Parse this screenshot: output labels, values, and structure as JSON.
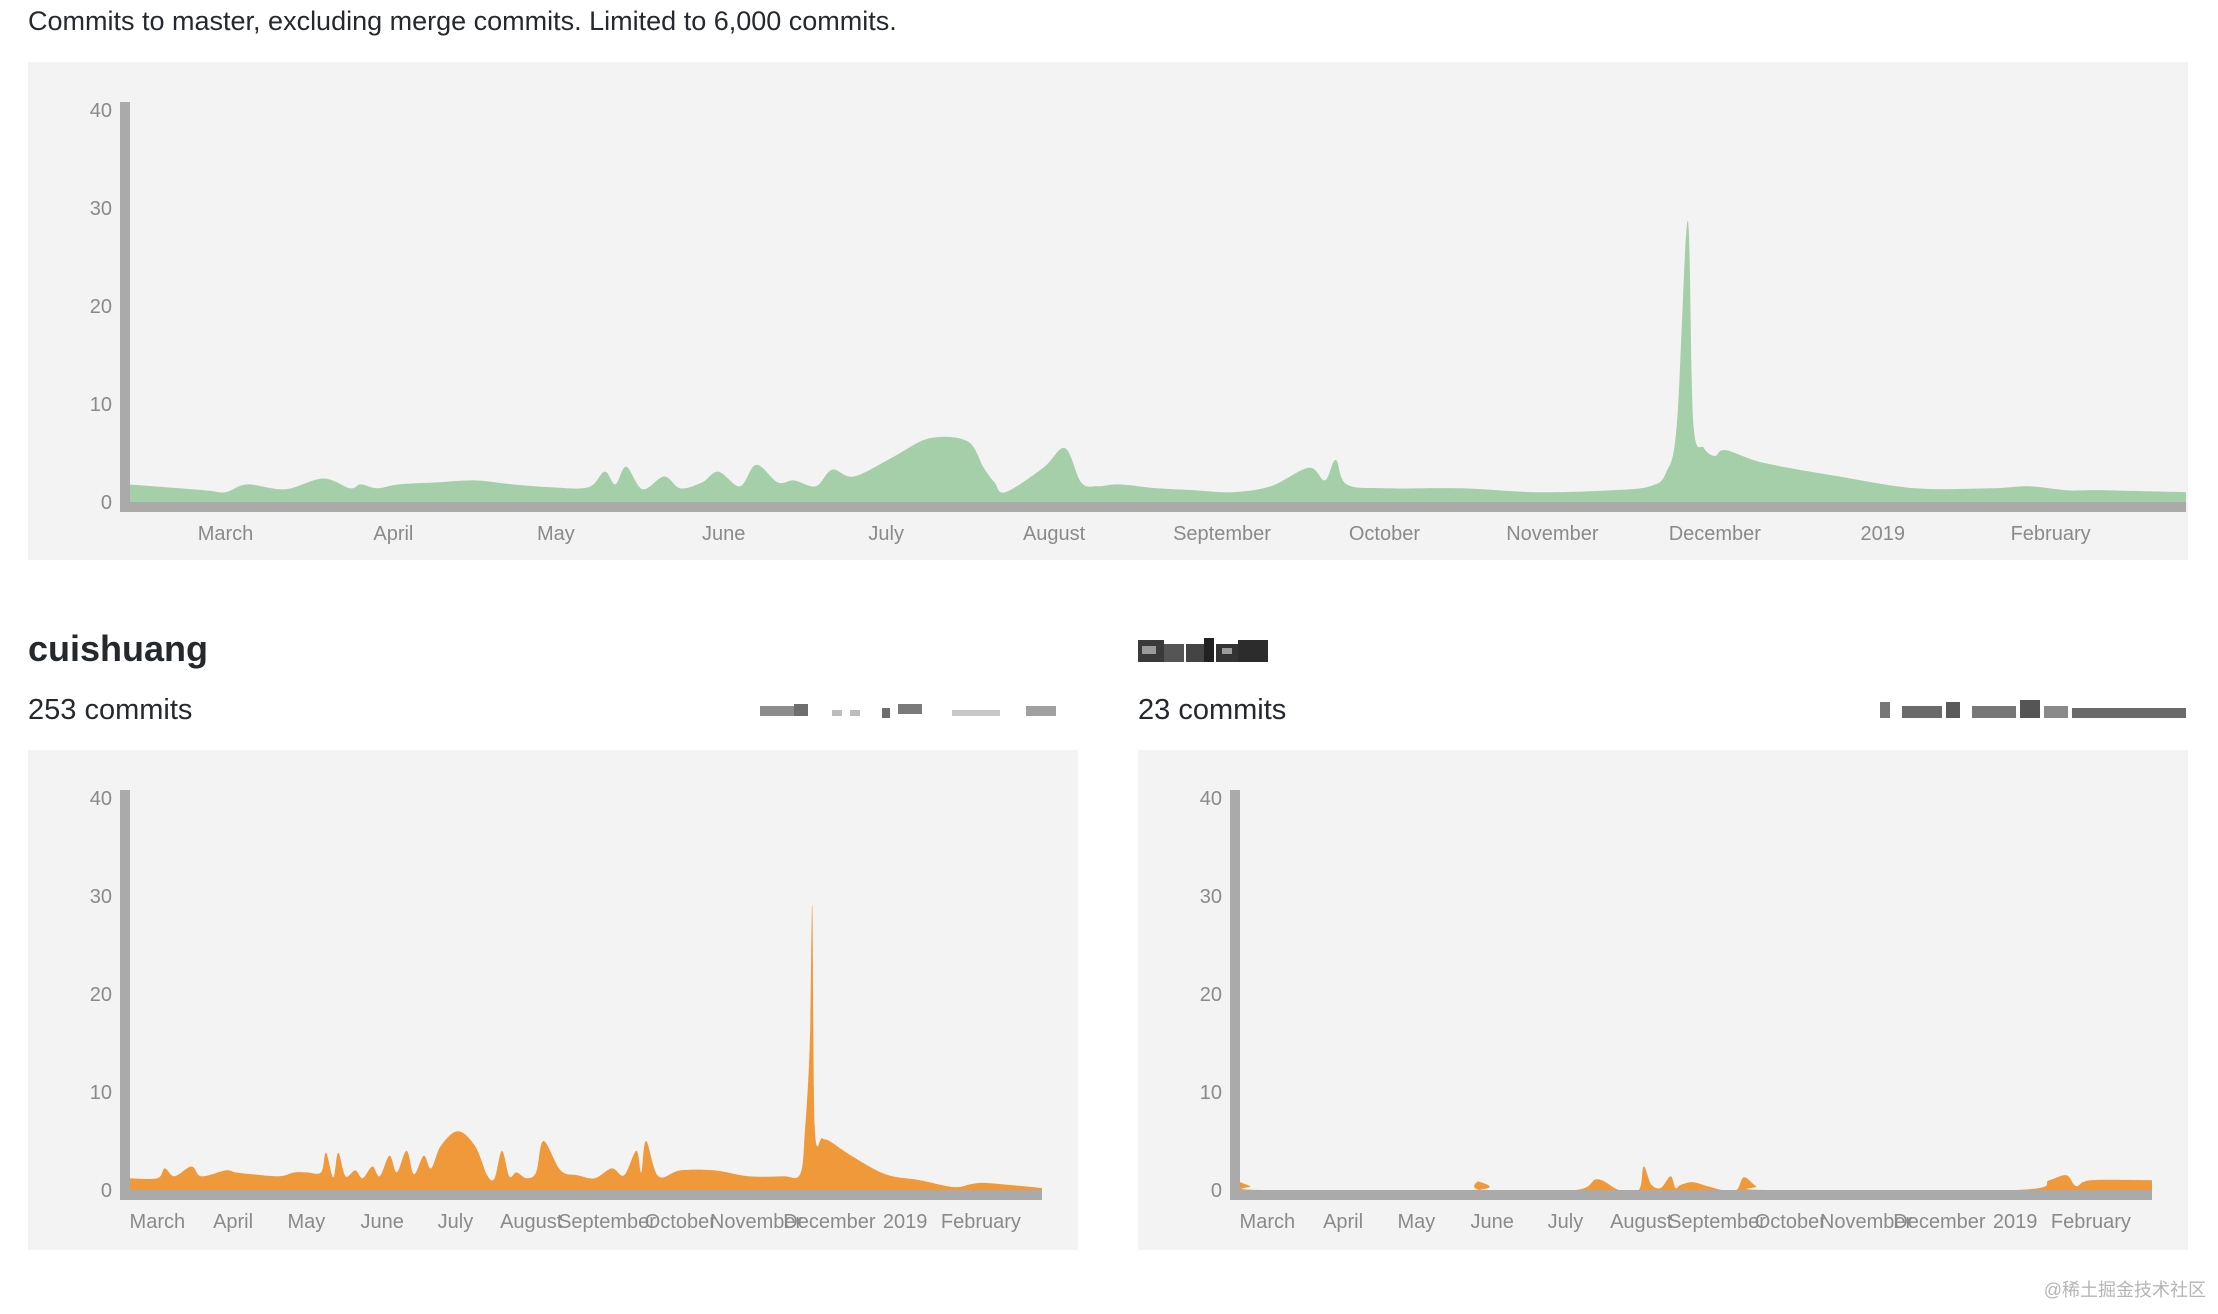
{
  "page": {
    "description": "Commits to master, excluding merge commits. Limited to 6,000 commits.",
    "watermark": "@稀土掘金技术社区"
  },
  "colors": {
    "panel_bg": "#f3f3f3",
    "axis": "#aaaaaa",
    "tick_text": "#8a8a8a",
    "overall_area": "#a5cfa9",
    "contributor_area": "#f0993a"
  },
  "contributors": [
    {
      "name": "cuishuang",
      "commits_label": "253 commits"
    },
    {
      "name": "",
      "commits_label": "23 commits"
    }
  ],
  "chart_data": [
    {
      "type": "area",
      "id": "overall",
      "ylim": [
        0,
        40
      ],
      "yticks": [
        0,
        10,
        20,
        30,
        40
      ],
      "x_domain": [
        "2018-02-11",
        "2019-02-26"
      ],
      "xticks": [
        {
          "date": "2018-03-01",
          "label": "March"
        },
        {
          "date": "2018-04-01",
          "label": "April"
        },
        {
          "date": "2018-05-01",
          "label": "May"
        },
        {
          "date": "2018-06-01",
          "label": "June"
        },
        {
          "date": "2018-07-01",
          "label": "July"
        },
        {
          "date": "2018-08-01",
          "label": "August"
        },
        {
          "date": "2018-09-01",
          "label": "September"
        },
        {
          "date": "2018-10-01",
          "label": "October"
        },
        {
          "date": "2018-11-01",
          "label": "November"
        },
        {
          "date": "2018-12-01",
          "label": "December"
        },
        {
          "date": "2019-01-01",
          "label": "2019"
        },
        {
          "date": "2019-02-01",
          "label": "February"
        }
      ],
      "series": [
        {
          "x": [
            "2018-02-11",
            "2018-02-25",
            "2018-03-01",
            "2018-03-05",
            "2018-03-12",
            "2018-03-19",
            "2018-03-24",
            "2018-03-26",
            "2018-03-29",
            "2018-04-02",
            "2018-04-09",
            "2018-04-16",
            "2018-04-23",
            "2018-04-30",
            "2018-05-07",
            "2018-05-10",
            "2018-05-12",
            "2018-05-14",
            "2018-05-17",
            "2018-05-21",
            "2018-05-24",
            "2018-05-28",
            "2018-05-31",
            "2018-06-04",
            "2018-06-07",
            "2018-06-11",
            "2018-06-14",
            "2018-06-18",
            "2018-06-21",
            "2018-06-25",
            "2018-07-02",
            "2018-07-09",
            "2018-07-16",
            "2018-07-19",
            "2018-07-21",
            "2018-07-23",
            "2018-07-30",
            "2018-08-03",
            "2018-08-06",
            "2018-08-09",
            "2018-08-13",
            "2018-08-20",
            "2018-08-27",
            "2018-09-03",
            "2018-09-10",
            "2018-09-17",
            "2018-09-20",
            "2018-09-22",
            "2018-09-24",
            "2018-10-01",
            "2018-10-15",
            "2018-10-29",
            "2018-11-12",
            "2018-11-19",
            "2018-11-22",
            "2018-11-24",
            "2018-11-26",
            "2018-11-27",
            "2018-11-29",
            "2018-12-01",
            "2018-12-03",
            "2018-12-10",
            "2018-12-24",
            "2019-01-07",
            "2019-01-21",
            "2019-01-28",
            "2019-02-04",
            "2019-02-11",
            "2019-02-26"
          ],
          "values": [
            1.8,
            1.2,
            1.0,
            1.8,
            1.3,
            2.4,
            1.4,
            1.8,
            1.4,
            1.8,
            2.0,
            2.2,
            1.8,
            1.5,
            1.5,
            3.1,
            1.8,
            3.6,
            1.3,
            2.6,
            1.4,
            2.0,
            3.1,
            1.6,
            3.8,
            2.0,
            2.2,
            1.6,
            3.3,
            2.6,
            4.5,
            6.5,
            6.2,
            3.5,
            2.0,
            1.0,
            3.5,
            5.5,
            2.0,
            1.6,
            1.8,
            1.4,
            1.2,
            1.0,
            1.6,
            3.5,
            2.2,
            4.3,
            1.8,
            1.4,
            1.4,
            1.0,
            1.2,
            1.6,
            3.0,
            8.0,
            28.7,
            8.2,
            5.5,
            4.7,
            5.3,
            4.0,
            2.6,
            1.4,
            1.4,
            1.6,
            1.2,
            1.2,
            1.0
          ]
        }
      ]
    },
    {
      "type": "area",
      "id": "contributor-1",
      "ylim": [
        0,
        40
      ],
      "yticks": [
        0,
        10,
        20,
        30,
        40
      ],
      "x_domain": [
        "2018-02-17",
        "2019-02-26"
      ],
      "xticks": [
        {
          "date": "2018-03-01",
          "label": "March"
        },
        {
          "date": "2018-04-01",
          "label": "April"
        },
        {
          "date": "2018-05-01",
          "label": "May"
        },
        {
          "date": "2018-06-01",
          "label": "June"
        },
        {
          "date": "2018-07-01",
          "label": "July"
        },
        {
          "date": "2018-08-01",
          "label": "August"
        },
        {
          "date": "2018-09-01",
          "label": "September"
        },
        {
          "date": "2018-10-01",
          "label": "October"
        },
        {
          "date": "2018-11-01",
          "label": "November"
        },
        {
          "date": "2018-12-01",
          "label": "December"
        },
        {
          "date": "2019-01-01",
          "label": "2019"
        },
        {
          "date": "2019-02-01",
          "label": "February"
        }
      ],
      "series": [
        {
          "x": [
            "2018-02-17",
            "2018-03-01",
            "2018-03-04",
            "2018-03-08",
            "2018-03-15",
            "2018-03-19",
            "2018-03-29",
            "2018-04-02",
            "2018-04-09",
            "2018-04-20",
            "2018-04-26",
            "2018-05-01",
            "2018-05-07",
            "2018-05-09",
            "2018-05-12",
            "2018-05-14",
            "2018-05-17",
            "2018-05-21",
            "2018-05-24",
            "2018-05-28",
            "2018-05-31",
            "2018-06-04",
            "2018-06-07",
            "2018-06-11",
            "2018-06-14",
            "2018-06-18",
            "2018-06-21",
            "2018-06-25",
            "2018-07-02",
            "2018-07-09",
            "2018-07-14",
            "2018-07-17",
            "2018-07-20",
            "2018-07-23",
            "2018-07-26",
            "2018-07-30",
            "2018-08-03",
            "2018-08-06",
            "2018-08-13",
            "2018-08-20",
            "2018-08-27",
            "2018-09-03",
            "2018-09-08",
            "2018-09-13",
            "2018-09-15",
            "2018-09-17",
            "2018-09-22",
            "2018-10-01",
            "2018-10-15",
            "2018-10-29",
            "2018-11-12",
            "2018-11-19",
            "2018-11-21",
            "2018-11-23",
            "2018-11-24",
            "2018-11-25",
            "2018-11-28",
            "2018-12-01",
            "2018-12-10",
            "2018-12-24",
            "2019-01-07",
            "2019-01-21",
            "2019-01-28",
            "2019-02-04",
            "2019-02-26"
          ],
          "values": [
            1.2,
            1.2,
            2.2,
            1.4,
            2.4,
            1.4,
            2.0,
            1.8,
            1.6,
            1.4,
            1.8,
            1.8,
            1.8,
            3.8,
            1.3,
            3.8,
            1.4,
            2.0,
            1.2,
            2.4,
            1.4,
            3.5,
            1.8,
            4.0,
            1.6,
            3.5,
            2.2,
            4.5,
            6.0,
            4.5,
            1.5,
            1.2,
            4.0,
            1.4,
            1.8,
            1.2,
            1.8,
            5.0,
            2.0,
            1.5,
            1.2,
            2.2,
            1.5,
            4.0,
            1.8,
            5.0,
            1.4,
            2.0,
            2.0,
            1.4,
            1.4,
            1.6,
            6.0,
            15.0,
            29.0,
            6.5,
            5.3,
            5.0,
            3.5,
            1.6,
            1.0,
            0.3,
            0.6,
            0.7,
            0.2
          ]
        }
      ]
    },
    {
      "type": "area",
      "id": "contributor-2",
      "ylim": [
        0,
        40
      ],
      "yticks": [
        0,
        10,
        20,
        30,
        40
      ],
      "x_domain": [
        "2018-02-17",
        "2019-02-26"
      ],
      "xticks": [
        {
          "date": "2018-03-01",
          "label": "March"
        },
        {
          "date": "2018-04-01",
          "label": "April"
        },
        {
          "date": "2018-05-01",
          "label": "May"
        },
        {
          "date": "2018-06-01",
          "label": "June"
        },
        {
          "date": "2018-07-01",
          "label": "July"
        },
        {
          "date": "2018-08-01",
          "label": "August"
        },
        {
          "date": "2018-09-01",
          "label": "September"
        },
        {
          "date": "2018-10-01",
          "label": "October"
        },
        {
          "date": "2018-11-01",
          "label": "November"
        },
        {
          "date": "2018-12-01",
          "label": "December"
        },
        {
          "date": "2019-01-01",
          "label": "2019"
        },
        {
          "date": "2019-02-01",
          "label": "February"
        }
      ],
      "series": [
        {
          "x": [
            "2018-02-17",
            "2018-02-22",
            "2018-02-26",
            "2018-05-24",
            "2018-05-26",
            "2018-05-28",
            "2018-07-05",
            "2018-07-14",
            "2018-07-23",
            "2018-07-31",
            "2018-08-02",
            "2018-08-05",
            "2018-08-09",
            "2018-08-13",
            "2018-08-15",
            "2018-08-17",
            "2018-08-22",
            "2018-08-28",
            "2018-09-03",
            "2018-09-09",
            "2018-09-12",
            "2018-09-17",
            "2018-09-22",
            "2019-01-01",
            "2019-01-15",
            "2019-01-22",
            "2019-01-26",
            "2019-02-01",
            "2019-02-26"
          ],
          "values": [
            0.9,
            0.4,
            0,
            0,
            0.9,
            0,
            0,
            1.1,
            0,
            0,
            2.4,
            0.6,
            0.2,
            1.4,
            0.2,
            0.5,
            0.8,
            0.4,
            0,
            0,
            1.3,
            0.4,
            0,
            0,
            1.0,
            1.5,
            0.4,
            1.0,
            1.0
          ]
        }
      ]
    }
  ]
}
